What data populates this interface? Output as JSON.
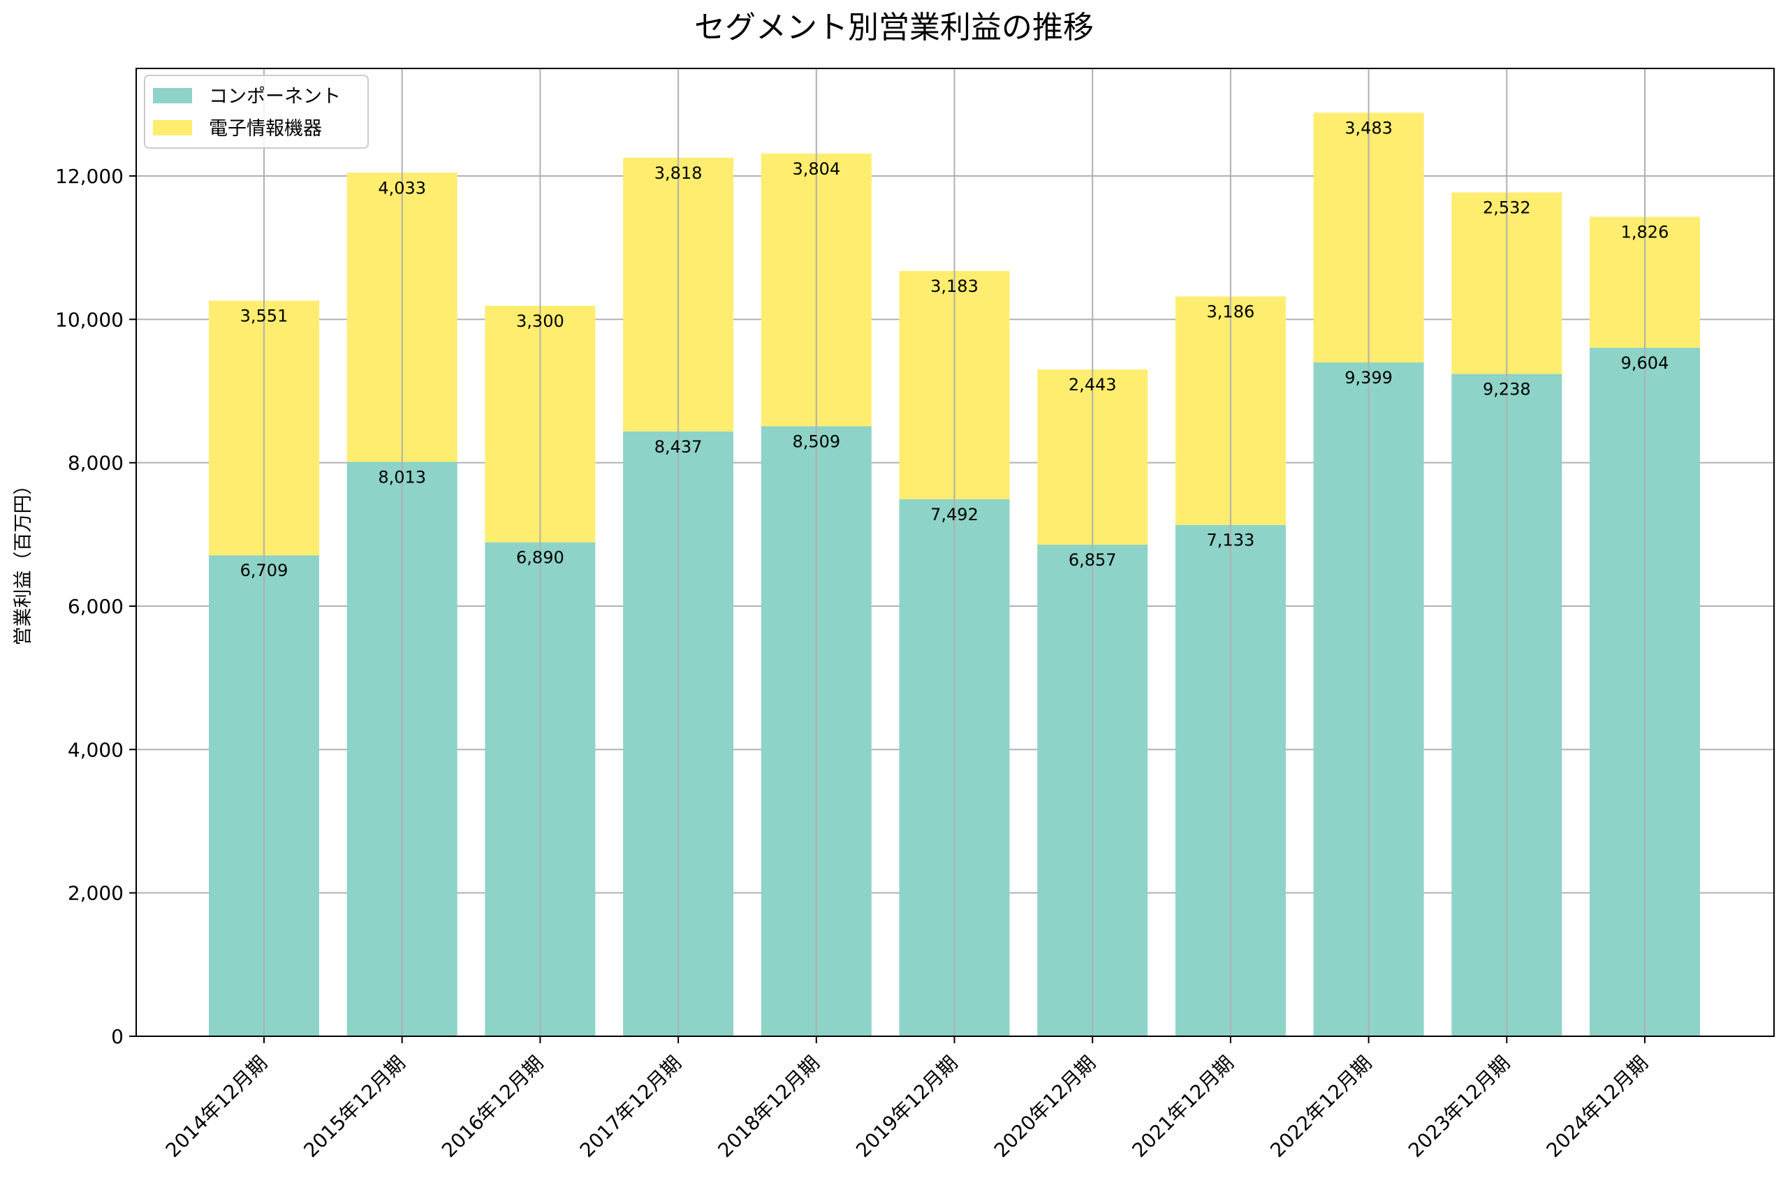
{
  "chart_data": {
    "type": "bar",
    "stacked": true,
    "title": "セグメント別営業利益の推移",
    "xlabel": "",
    "ylabel": "営業利益（百万円）",
    "ylim": [
      0,
      13500
    ],
    "yticks": [
      0,
      2000,
      4000,
      6000,
      8000,
      10000,
      12000
    ],
    "ytick_labels": [
      "0",
      "2,000",
      "4,000",
      "6,000",
      "8,000",
      "10,000",
      "12,000"
    ],
    "grid": true,
    "legend_position": "top-left",
    "categories": [
      "2014年12月期",
      "2015年12月期",
      "2016年12月期",
      "2017年12月期",
      "2018年12月期",
      "2019年12月期",
      "2020年12月期",
      "2021年12月期",
      "2022年12月期",
      "2023年12月期",
      "2024年12月期"
    ],
    "series": [
      {
        "name": "コンポーネント",
        "color": "#8dd3c7",
        "values": [
          6709,
          8013,
          6890,
          8437,
          8509,
          7492,
          6857,
          7133,
          9399,
          9238,
          9604
        ],
        "labels": [
          "6,709",
          "8,013",
          "6,890",
          "8,437",
          "8,509",
          "7,492",
          "6,857",
          "7,133",
          "9,399",
          "9,238",
          "9,604"
        ]
      },
      {
        "name": "電子情報機器",
        "color": "#ffed6f",
        "values": [
          3551,
          4033,
          3300,
          3818,
          3804,
          3183,
          2443,
          3186,
          3483,
          2532,
          1826
        ],
        "labels": [
          "3,551",
          "4,033",
          "3,300",
          "3,818",
          "3,804",
          "3,183",
          "2,443",
          "3,186",
          "3,483",
          "2,532",
          "1,826"
        ]
      }
    ]
  }
}
